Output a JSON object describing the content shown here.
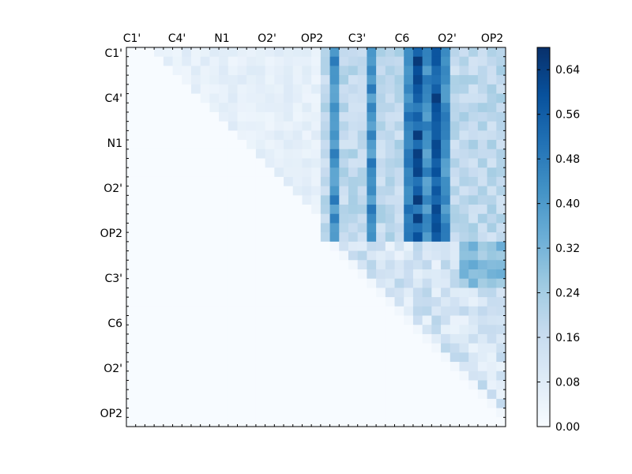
{
  "chart_data": {
    "type": "heatmap",
    "title": "",
    "xlabel": "",
    "ylabel": "",
    "grid_size": 41,
    "top_tick_labels": [
      "C1'",
      "C4'",
      "N1",
      "O2'",
      "OP2",
      "C3'",
      "C6",
      "O2'",
      "OP2"
    ],
    "left_tick_labels": [
      "C1'",
      "C4'",
      "N1",
      "O2'",
      "OP2",
      "C3'",
      "C6",
      "O2'",
      "OP2"
    ],
    "colorbar": {
      "min": 0.0,
      "max": 0.68,
      "ticks": [
        "0.00",
        "0.08",
        "0.16",
        "0.24",
        "0.32",
        "0.40",
        "0.48",
        "0.56",
        "0.64"
      ],
      "colormap": "Blues",
      "stops": [
        "#f7fbff",
        "#deebf7",
        "#c6dbef",
        "#9ecae1",
        "#6baed6",
        "#4292c6",
        "#2171b5",
        "#08519c",
        "#08306b"
      ]
    },
    "upper_triangle": "values shown only above the diagonal; lower triangle is zero",
    "bands": [
      {
        "label": "weak background near diagonal",
        "rows": [
          0,
          20
        ],
        "cols": [
          0,
          21
        ],
        "value": 0.06
      },
      {
        "label": "first-residue vs second-residue block",
        "rows": [
          0,
          21
        ],
        "cols": [
          21,
          41
        ],
        "value": 0.22
      },
      {
        "label": "strong columns",
        "cols": [
          22,
          26,
          32,
          33,
          34
        ],
        "rows": [
          0,
          21
        ],
        "value": 0.5
      },
      {
        "label": "peak columns",
        "cols": [
          31,
          33
        ],
        "rows": [
          0,
          17
        ],
        "value": 0.62
      },
      {
        "label": "second-residue internal block",
        "rows": [
          22,
          41
        ],
        "cols": [
          23,
          41
        ],
        "value": 0.15
      }
    ]
  }
}
